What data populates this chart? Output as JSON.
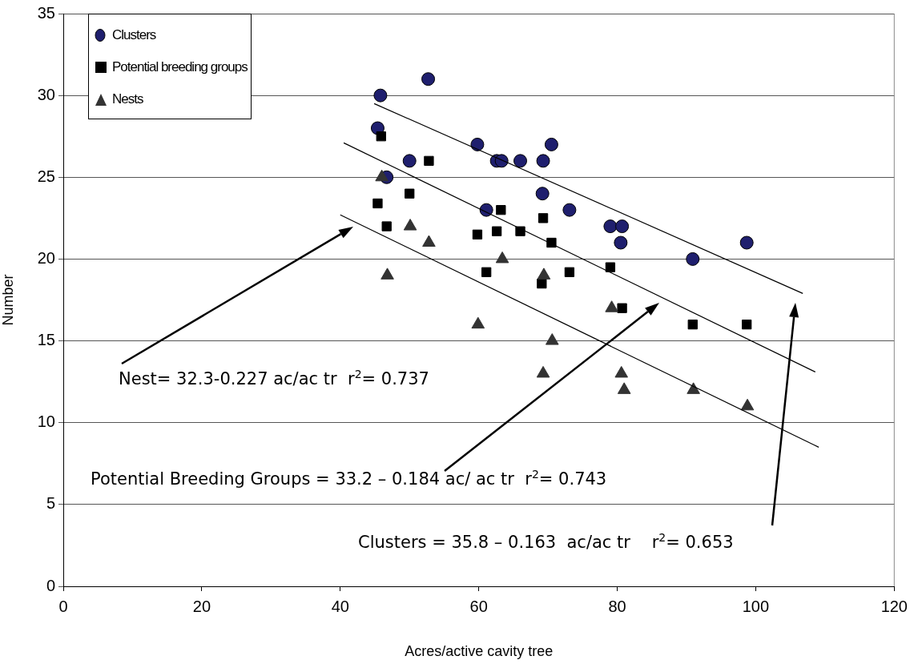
{
  "chart_data": {
    "type": "scatter",
    "xlabel": "Acres/active cavity tree",
    "ylabel": "Number",
    "xlim": [
      0,
      120
    ],
    "xticks": [
      0,
      20,
      40,
      60,
      80,
      100,
      120
    ],
    "ylim": [
      0,
      35
    ],
    "yticks": [
      0,
      5,
      10,
      15,
      20,
      25,
      30,
      35
    ],
    "grid": "y",
    "legend": "top left",
    "series": [
      {
        "name": "Clusters",
        "type": "scatter",
        "marker": "circle",
        "color": "#1f1f6e",
        "x": [
          45.8,
          52.7,
          45.4,
          50.0,
          46.7,
          59.8,
          62.6,
          63.3,
          66.0,
          69.3,
          70.5,
          69.2,
          61.1,
          73.1,
          79.0,
          80.7,
          80.5,
          90.9,
          98.7
        ],
        "values": [
          30,
          31,
          28,
          26,
          25,
          27,
          26,
          26,
          26,
          26,
          27,
          24,
          23,
          23,
          22,
          22,
          21,
          20,
          21
        ]
      },
      {
        "name": "Potential breeding groups",
        "type": "scatter",
        "marker": "square",
        "color": "#000000",
        "x": [
          45.9,
          52.8,
          50.0,
          45.4,
          46.7,
          63.2,
          59.8,
          62.6,
          66.0,
          69.3,
          70.5,
          61.1,
          73.1,
          69.1,
          79.0,
          80.7,
          90.9,
          98.7
        ],
        "values": [
          27.5,
          26,
          24,
          23.4,
          22,
          23,
          21.5,
          21.7,
          21.7,
          22.5,
          21,
          19.2,
          19.2,
          18.5,
          19.5,
          17,
          16,
          16
        ]
      },
      {
        "name": "Nests",
        "type": "scatter",
        "marker": "triangle",
        "color": "#333333",
        "x": [
          46.0,
          50.1,
          52.8,
          46.8,
          63.4,
          69.4,
          59.9,
          70.6,
          69.3,
          79.2,
          80.6,
          81.0,
          91.0,
          98.8
        ],
        "values": [
          25,
          22,
          21,
          19,
          20,
          19,
          16,
          15,
          13,
          17,
          13,
          12,
          12,
          11
        ]
      },
      {
        "type": "line",
        "marker": "none",
        "color": "#000000",
        "x": [
          44.9,
          106.8
        ],
        "values": [
          29.5,
          17.9
        ]
      },
      {
        "type": "line",
        "marker": "none",
        "color": "#000000",
        "x": [
          40.5,
          108.6
        ],
        "values": [
          27.1,
          13.1
        ]
      },
      {
        "type": "line",
        "marker": "none",
        "color": "#000000",
        "x": [
          40.0,
          109.1
        ],
        "values": [
          22.7,
          8.5
        ]
      }
    ],
    "annotations": [
      "Nest= 32.3-0.227 ac/ac tr  r$^{2}$= 0.737",
      "Potential Breeding Groups = 33.2 – 0.184 ac/ ac tr  r$^{2}$= 0.743",
      "Clusters = 35.8 – 0.163  ac/ac tr    r$^{2}$= 0.653"
    ]
  }
}
